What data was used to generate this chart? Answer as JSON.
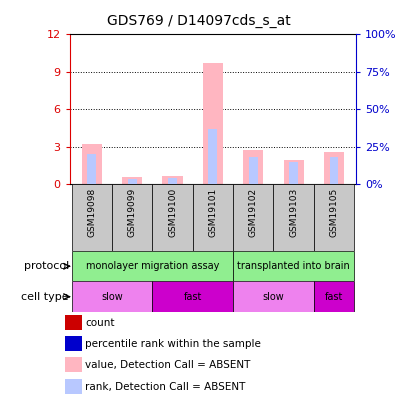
{
  "title": "GDS769 / D14097cds_s_at",
  "samples": [
    "GSM19098",
    "GSM19099",
    "GSM19100",
    "GSM19101",
    "GSM19102",
    "GSM19103",
    "GSM19105"
  ],
  "value_absent": [
    3.2,
    0.55,
    0.65,
    9.7,
    2.75,
    1.95,
    2.55
  ],
  "rank_absent_pct": [
    20.0,
    3.5,
    4.5,
    37.0,
    18.0,
    15.0,
    18.5
  ],
  "ylim_left": [
    0,
    12
  ],
  "yticks_left": [
    0,
    3,
    6,
    9,
    12
  ],
  "ylim_right": [
    0,
    100
  ],
  "yticks_right": [
    0,
    25,
    50,
    75,
    100
  ],
  "left_color": "#dd0000",
  "right_color": "#0000cc",
  "bar_value_absent_color": "#ffb6c1",
  "bar_rank_absent_color": "#b8c8ff",
  "bar_count_color": "#cc0000",
  "bar_rank_color": "#0000cc",
  "protocol_labels": [
    "monolayer migration assay",
    "transplanted into brain"
  ],
  "protocol_color": "#90ee90",
  "cell_type_labels": [
    "slow",
    "fast",
    "slow",
    "fast"
  ],
  "cell_type_slow_color": "#ee82ee",
  "cell_type_fast_color": "#cc00cc",
  "sample_bg_color": "#c8c8c8",
  "legend_items": [
    {
      "color": "#cc0000",
      "label": "count"
    },
    {
      "color": "#0000cc",
      "label": "percentile rank within the sample"
    },
    {
      "color": "#ffb6c1",
      "label": "value, Detection Call = ABSENT"
    },
    {
      "color": "#b8c8ff",
      "label": "rank, Detection Call = ABSENT"
    }
  ]
}
